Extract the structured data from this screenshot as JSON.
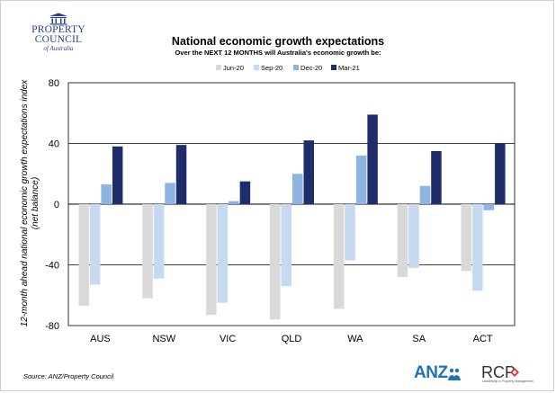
{
  "logo": {
    "line1": "PROPERTY",
    "line2": "COUNCIL",
    "line3": "of Australia"
  },
  "source": "Source: ANZ/Property Council",
  "partners": {
    "anz": "ANZ",
    "rcp": "RCP",
    "rcp_tagline": "Leadership in Property Management"
  },
  "colors": {
    "jun20": "#d9d9d9",
    "sep20": "#c6d9f1",
    "dec20": "#8db4e2",
    "mar21": "#1f2d6b",
    "logo": "#2a3f8a",
    "anz": "#2072b8",
    "rcp_red": "#e03030"
  },
  "chart_data": {
    "type": "bar",
    "title": "National economic growth expectations",
    "subtitle": "Over the NEXT 12 MONTHS will Australia's economic growth be:",
    "ylabel_line1": "12-month ahead national economic growth expectations index",
    "ylabel_line2": "(net balance)",
    "xlabel": "",
    "categories": [
      "AUS",
      "NSW",
      "VIC",
      "QLD",
      "WA",
      "SA",
      "ACT"
    ],
    "ylim": [
      -80,
      80
    ],
    "yticks": [
      80,
      40,
      0,
      -40,
      -80
    ],
    "ytick_labels": [
      "80",
      "40",
      "0",
      "-40",
      "-80"
    ],
    "grid": true,
    "legend_position": "top-center",
    "series": [
      {
        "name": "Jun-20",
        "values": [
          -67,
          -62,
          -73,
          -76,
          -69,
          -48,
          -44
        ]
      },
      {
        "name": "Sep-20",
        "values": [
          -53,
          -49,
          -65,
          -54,
          -37,
          -42,
          -57
        ]
      },
      {
        "name": "Dec-20",
        "values": [
          13,
          14,
          2,
          20,
          32,
          12,
          -4
        ]
      },
      {
        "name": "Mar-21",
        "values": [
          38,
          39,
          15,
          42,
          59,
          35,
          40
        ]
      }
    ]
  }
}
